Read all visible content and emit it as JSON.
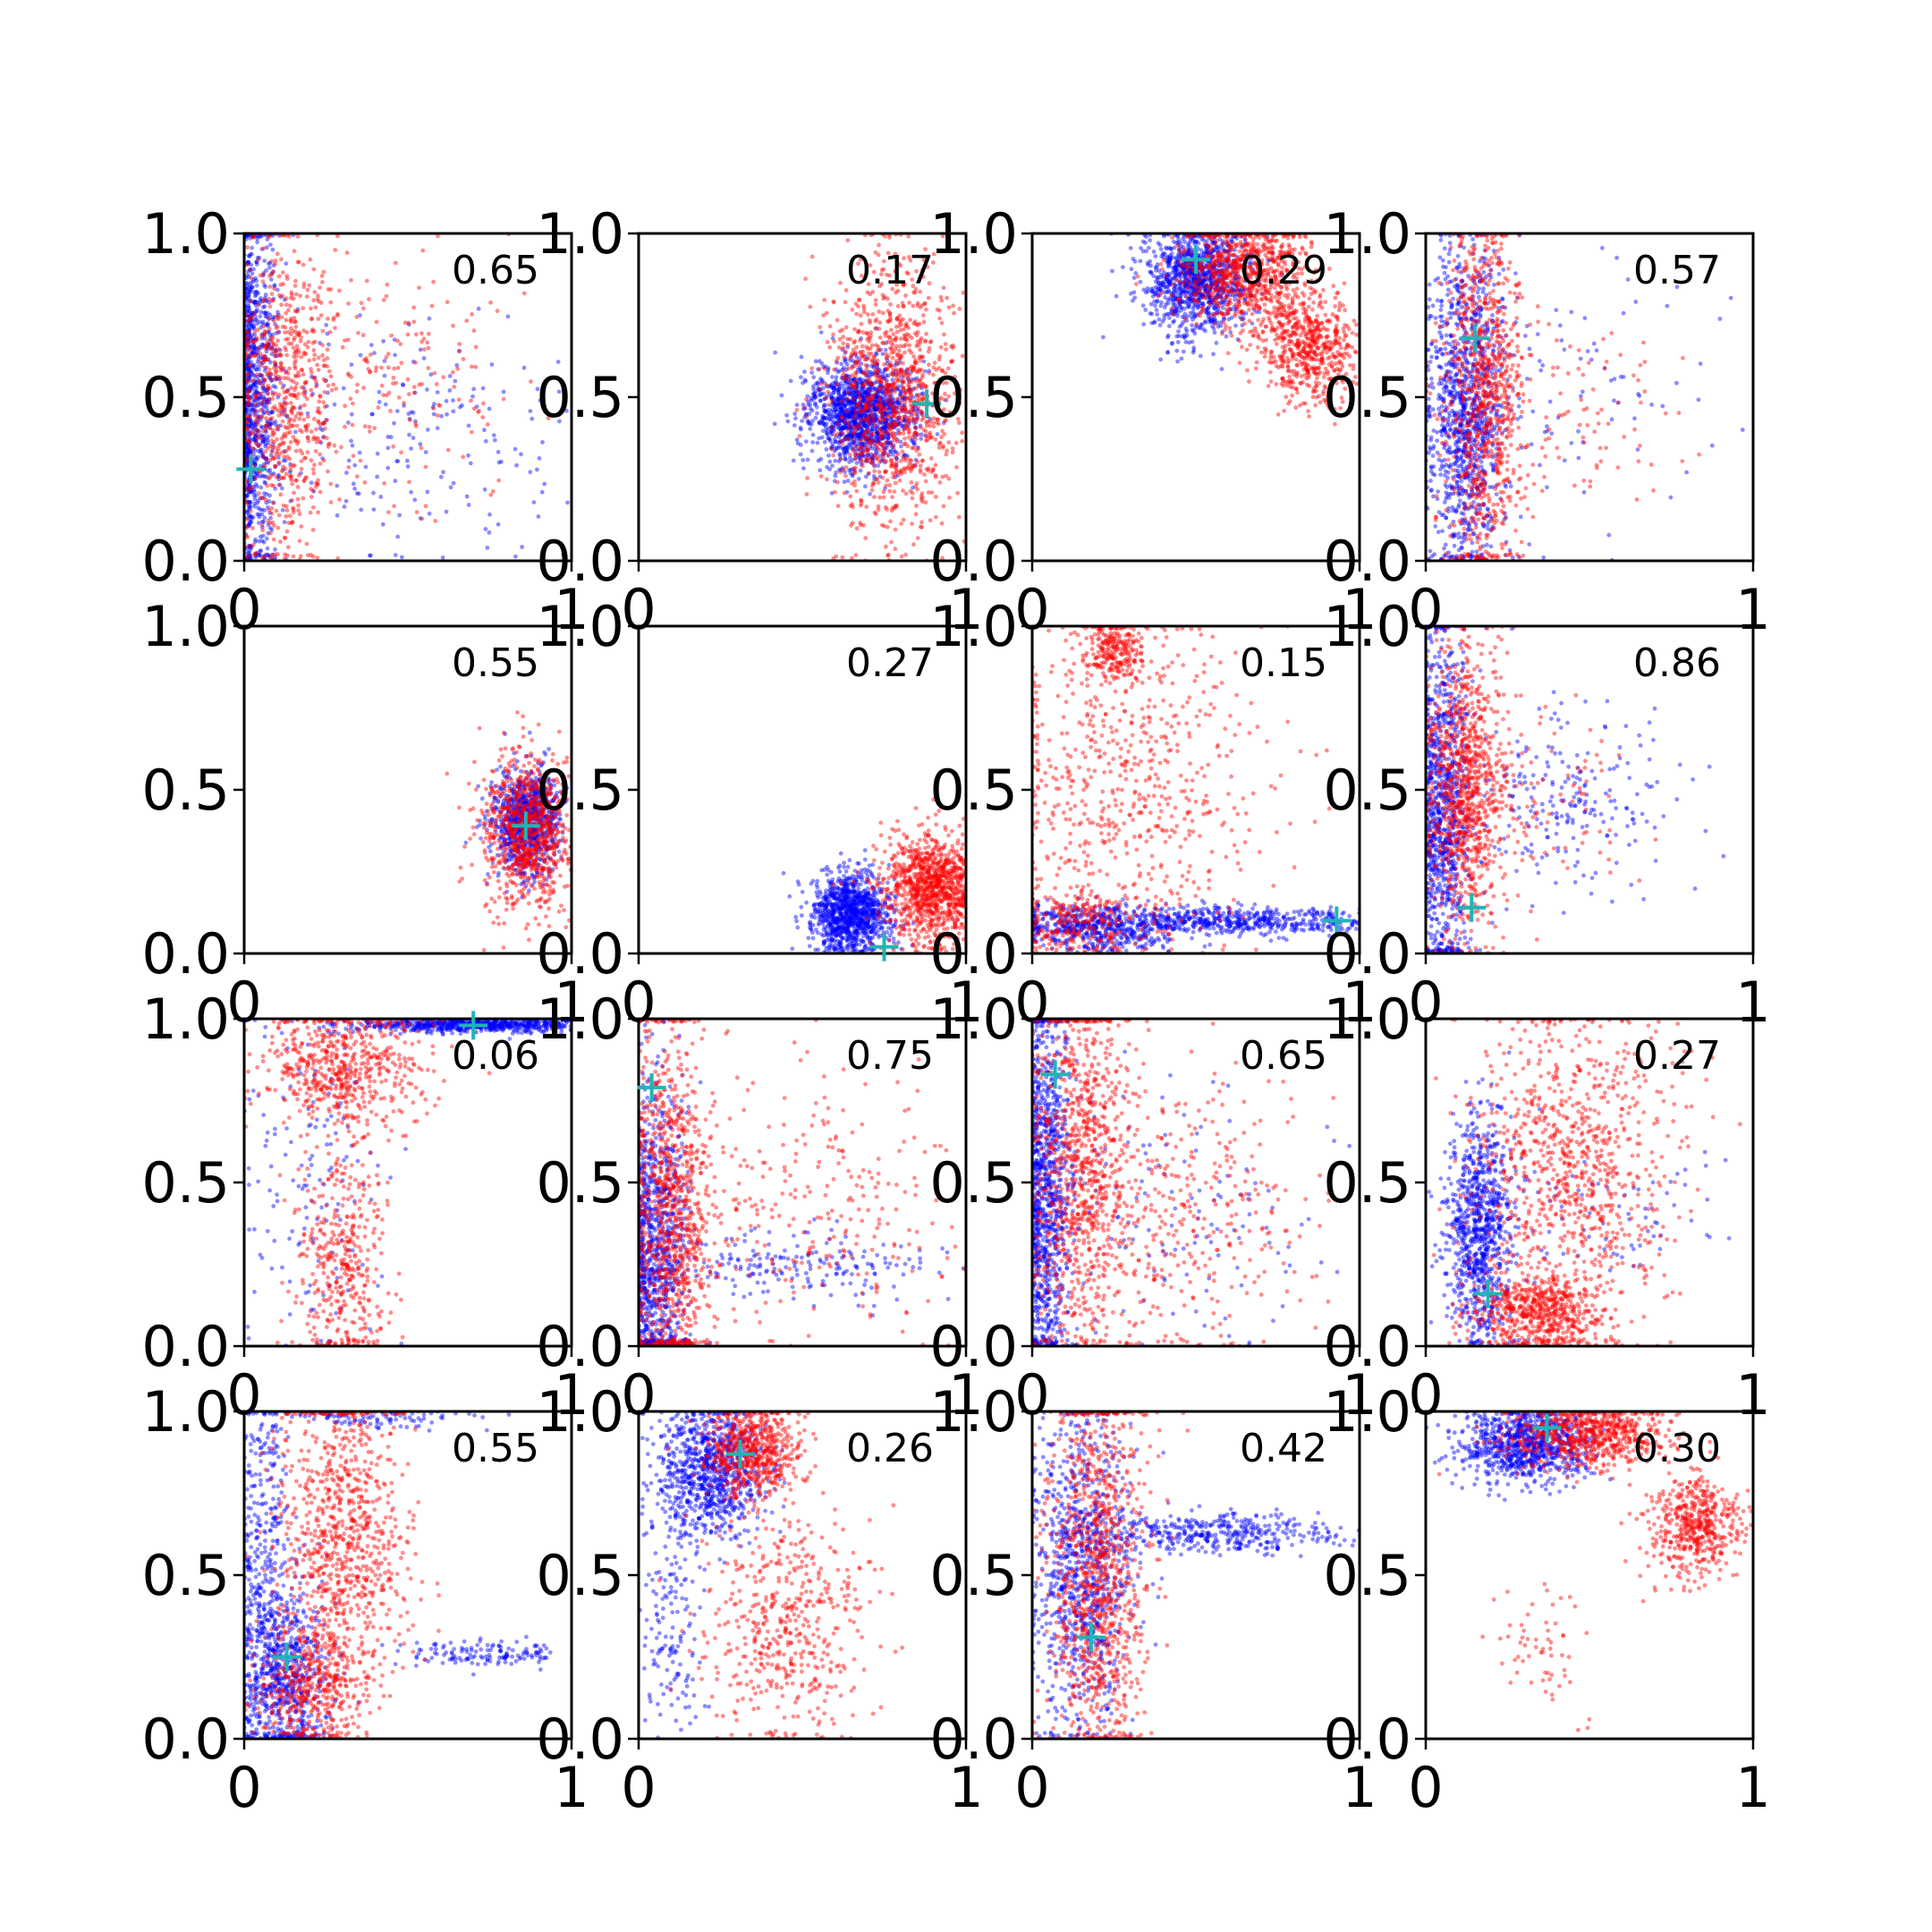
{
  "figure": {
    "layout": "4x4 grid of scatter subplots",
    "series_colors": {
      "blue": "#0000ff",
      "red": "#ff0000",
      "marker": "#1fb5b5"
    }
  },
  "chart_data": [
    {
      "type": "scatter",
      "label": "0.65",
      "xlim": [
        0,
        1
      ],
      "ylim": [
        0,
        1
      ],
      "x_ticks": [
        "0",
        "1"
      ],
      "y_ticks": [
        "0.0",
        "0.5",
        "1.0"
      ],
      "marker": [
        0.02,
        0.28
      ],
      "series": [
        {
          "color": "#0000ff",
          "clusters": [
            [
              0.03,
              0.5,
              0.04,
              0.28,
              900
            ],
            [
              0.5,
              0.4,
              0.3,
              0.2,
              220
            ]
          ]
        },
        {
          "color": "#ff0000",
          "clusters": [
            [
              0.12,
              0.5,
              0.08,
              0.25,
              700
            ],
            [
              0.45,
              0.55,
              0.2,
              0.2,
              180
            ]
          ]
        }
      ]
    },
    {
      "type": "scatter",
      "label": "0.17",
      "xlim": [
        0,
        1
      ],
      "ylim": [
        0,
        1
      ],
      "x_ticks": [
        "0",
        "1"
      ],
      "y_ticks": [
        "0.0",
        "0.5",
        "1.0"
      ],
      "marker": [
        0.88,
        0.48
      ],
      "series": [
        {
          "color": "#0000ff",
          "clusters": [
            [
              0.68,
              0.45,
              0.08,
              0.08,
              1400
            ]
          ]
        },
        {
          "color": "#ff0000",
          "clusters": [
            [
              0.78,
              0.5,
              0.1,
              0.2,
              1100
            ]
          ]
        }
      ]
    },
    {
      "type": "scatter",
      "label": "0.29",
      "xlim": [
        0,
        1
      ],
      "ylim": [
        0,
        1
      ],
      "x_ticks": [
        "0",
        "1"
      ],
      "y_ticks": [
        "0.0",
        "0.5",
        "1.0"
      ],
      "marker": [
        0.5,
        0.92
      ],
      "series": [
        {
          "color": "#0000ff",
          "clusters": [
            [
              0.5,
              0.86,
              0.08,
              0.08,
              1100
            ]
          ]
        },
        {
          "color": "#ff0000",
          "clusters": [
            [
              0.65,
              0.88,
              0.1,
              0.08,
              800
            ],
            [
              0.85,
              0.65,
              0.08,
              0.08,
              600
            ]
          ]
        }
      ]
    },
    {
      "type": "scatter",
      "label": "0.57",
      "xlim": [
        0,
        1
      ],
      "ylim": [
        0,
        1
      ],
      "x_ticks": [
        "0",
        "1"
      ],
      "y_ticks": [
        "0.0",
        "0.5",
        "1.0"
      ],
      "marker": [
        0.15,
        0.68
      ],
      "series": [
        {
          "color": "#0000ff",
          "clusters": [
            [
              0.12,
              0.45,
              0.06,
              0.25,
              1100
            ],
            [
              0.5,
              0.5,
              0.2,
              0.2,
              80
            ]
          ]
        },
        {
          "color": "#ff0000",
          "clusters": [
            [
              0.18,
              0.5,
              0.06,
              0.28,
              900
            ],
            [
              0.5,
              0.45,
              0.15,
              0.15,
              80
            ]
          ]
        }
      ]
    },
    {
      "type": "scatter",
      "label": "0.55",
      "xlim": [
        0,
        1
      ],
      "ylim": [
        0,
        1
      ],
      "x_ticks": [
        "0",
        "1"
      ],
      "y_ticks": [
        "0.0",
        "0.5",
        "1.0"
      ],
      "marker": [
        0.86,
        0.39
      ],
      "series": [
        {
          "color": "#0000ff",
          "clusters": [
            [
              0.86,
              0.4,
              0.05,
              0.08,
              900
            ]
          ]
        },
        {
          "color": "#ff0000",
          "clusters": [
            [
              0.86,
              0.37,
              0.07,
              0.12,
              900
            ]
          ]
        }
      ]
    },
    {
      "type": "scatter",
      "label": "0.27",
      "xlim": [
        0,
        1
      ],
      "ylim": [
        0,
        1
      ],
      "x_ticks": [
        "0",
        "1"
      ],
      "y_ticks": [
        "0.0",
        "0.5",
        "1.0"
      ],
      "marker": [
        0.75,
        0.02
      ],
      "series": [
        {
          "color": "#0000ff",
          "clusters": [
            [
              0.65,
              0.12,
              0.06,
              0.06,
              1100
            ]
          ]
        },
        {
          "color": "#ff0000",
          "clusters": [
            [
              0.9,
              0.2,
              0.08,
              0.08,
              1100
            ]
          ]
        }
      ]
    },
    {
      "type": "scatter",
      "label": "0.15",
      "xlim": [
        0,
        1
      ],
      "ylim": [
        0,
        1
      ],
      "x_ticks": [
        "0",
        "1"
      ],
      "y_ticks": [
        "0.0",
        "0.5",
        "1.0"
      ],
      "marker": [
        0.93,
        0.1
      ],
      "series": [
        {
          "color": "#0000ff",
          "clusters": [
            [
              0.2,
              0.08,
              0.12,
              0.04,
              500
            ],
            [
              0.6,
              0.1,
              0.25,
              0.02,
              600
            ]
          ]
        },
        {
          "color": "#ff0000",
          "clusters": [
            [
              0.25,
              0.92,
              0.05,
              0.05,
              250
            ],
            [
              0.3,
              0.5,
              0.2,
              0.25,
              600
            ],
            [
              0.15,
              0.1,
              0.1,
              0.05,
              250
            ]
          ]
        }
      ]
    },
    {
      "type": "scatter",
      "label": "0.86",
      "xlim": [
        0,
        1
      ],
      "ylim": [
        0,
        1
      ],
      "x_ticks": [
        "0",
        "1"
      ],
      "y_ticks": [
        "0.0",
        "0.5",
        "1.0"
      ],
      "marker": [
        0.14,
        0.14
      ],
      "series": [
        {
          "color": "#0000ff",
          "clusters": [
            [
              0.05,
              0.45,
              0.04,
              0.28,
              900
            ],
            [
              0.4,
              0.45,
              0.2,
              0.15,
              250
            ]
          ]
        },
        {
          "color": "#ff0000",
          "clusters": [
            [
              0.12,
              0.5,
              0.06,
              0.22,
              900
            ],
            [
              0.35,
              0.45,
              0.15,
              0.15,
              120
            ]
          ]
        }
      ]
    },
    {
      "type": "scatter",
      "label": "0.06",
      "xlim": [
        0,
        1
      ],
      "ylim": [
        0,
        1
      ],
      "x_ticks": [
        "0",
        "1"
      ],
      "y_ticks": [
        "0.0",
        "0.5",
        "1.0"
      ],
      "marker": [
        0.7,
        0.98
      ],
      "series": [
        {
          "color": "#0000ff",
          "clusters": [
            [
              0.7,
              0.98,
              0.18,
              0.01,
              700
            ],
            [
              0.2,
              0.5,
              0.12,
              0.3,
              150
            ]
          ]
        },
        {
          "color": "#ff0000",
          "clusters": [
            [
              0.3,
              0.85,
              0.12,
              0.1,
              600
            ],
            [
              0.3,
              0.25,
              0.07,
              0.18,
              400
            ]
          ]
        }
      ]
    },
    {
      "type": "scatter",
      "label": "0.75",
      "xlim": [
        0,
        1
      ],
      "ylim": [
        0,
        1
      ],
      "x_ticks": [
        "0",
        "1"
      ],
      "y_ticks": [
        "0.0",
        "0.5",
        "1.0"
      ],
      "marker": [
        0.04,
        0.79
      ],
      "series": [
        {
          "color": "#0000ff",
          "clusters": [
            [
              0.05,
              0.3,
              0.05,
              0.25,
              900
            ],
            [
              0.5,
              0.25,
              0.25,
              0.05,
              200
            ]
          ]
        },
        {
          "color": "#ff0000",
          "clusters": [
            [
              0.1,
              0.4,
              0.06,
              0.3,
              900
            ],
            [
              0.5,
              0.45,
              0.25,
              0.2,
              300
            ]
          ]
        }
      ]
    },
    {
      "type": "scatter",
      "label": "0.65",
      "xlim": [
        0,
        1
      ],
      "ylim": [
        0,
        1
      ],
      "x_ticks": [
        "0",
        "1"
      ],
      "y_ticks": [
        "0.0",
        "0.5",
        "1.0"
      ],
      "marker": [
        0.07,
        0.83
      ],
      "series": [
        {
          "color": "#0000ff",
          "clusters": [
            [
              0.04,
              0.5,
              0.04,
              0.3,
              1000
            ],
            [
              0.4,
              0.4,
              0.25,
              0.2,
              150
            ]
          ]
        },
        {
          "color": "#ff0000",
          "clusters": [
            [
              0.15,
              0.55,
              0.08,
              0.3,
              900
            ],
            [
              0.45,
              0.4,
              0.2,
              0.2,
              350
            ]
          ]
        }
      ]
    },
    {
      "type": "scatter",
      "label": "0.27",
      "xlim": [
        0,
        1
      ],
      "ylim": [
        0,
        1
      ],
      "x_ticks": [
        "0",
        "1"
      ],
      "y_ticks": [
        "0.0",
        "0.5",
        "1.0"
      ],
      "marker": [
        0.19,
        0.16
      ],
      "series": [
        {
          "color": "#0000ff",
          "clusters": [
            [
              0.17,
              0.35,
              0.05,
              0.18,
              900
            ],
            [
              0.6,
              0.4,
              0.2,
              0.1,
              80
            ]
          ]
        },
        {
          "color": "#ff0000",
          "clusters": [
            [
              0.35,
              0.1,
              0.1,
              0.06,
              600
            ],
            [
              0.45,
              0.55,
              0.15,
              0.25,
              900
            ]
          ]
        }
      ]
    },
    {
      "type": "scatter",
      "label": "0.55",
      "xlim": [
        0,
        1
      ],
      "ylim": [
        0,
        1
      ],
      "x_ticks": [
        "0",
        "1"
      ],
      "y_ticks": [
        "0.0",
        "0.5",
        "1.0"
      ],
      "marker": [
        0.13,
        0.25
      ],
      "series": [
        {
          "color": "#0000ff",
          "clusters": [
            [
              0.12,
              0.2,
              0.07,
              0.15,
              700
            ],
            [
              0.06,
              0.6,
              0.04,
              0.25,
              300
            ],
            [
              0.75,
              0.26,
              0.15,
              0.02,
              150
            ],
            [
              0.4,
              0.98,
              0.15,
              0.02,
              100
            ]
          ]
        },
        {
          "color": "#ff0000",
          "clusters": [
            [
              0.3,
              0.6,
              0.1,
              0.25,
              900
            ],
            [
              0.2,
              0.15,
              0.08,
              0.1,
              400
            ]
          ]
        }
      ]
    },
    {
      "type": "scatter",
      "label": "0.26",
      "xlim": [
        0,
        1
      ],
      "ylim": [
        0,
        1
      ],
      "x_ticks": [
        "0",
        "1"
      ],
      "y_ticks": [
        "0.0",
        "0.5",
        "1.0"
      ],
      "marker": [
        0.31,
        0.87
      ],
      "series": [
        {
          "color": "#0000ff",
          "clusters": [
            [
              0.22,
              0.82,
              0.08,
              0.1,
              900
            ],
            [
              0.1,
              0.35,
              0.05,
              0.2,
              150
            ]
          ]
        },
        {
          "color": "#ff0000",
          "clusters": [
            [
              0.35,
              0.88,
              0.07,
              0.07,
              600
            ],
            [
              0.45,
              0.35,
              0.12,
              0.18,
              500
            ]
          ]
        }
      ]
    },
    {
      "type": "scatter",
      "label": "0.42",
      "xlim": [
        0,
        1
      ],
      "ylim": [
        0,
        1
      ],
      "x_ticks": [
        "0",
        "1"
      ],
      "y_ticks": [
        "0.0",
        "0.5",
        "1.0"
      ],
      "marker": [
        0.18,
        0.31
      ],
      "series": [
        {
          "color": "#0000ff",
          "clusters": [
            [
              0.15,
              0.5,
              0.08,
              0.25,
              900
            ],
            [
              0.55,
              0.63,
              0.2,
              0.03,
              400
            ]
          ]
        },
        {
          "color": "#ff0000",
          "clusters": [
            [
              0.2,
              0.5,
              0.07,
              0.3,
              1000
            ]
          ]
        }
      ]
    },
    {
      "type": "scatter",
      "label": "0.30",
      "xlim": [
        0,
        1
      ],
      "ylim": [
        0,
        1
      ],
      "x_ticks": [
        "0",
        "1"
      ],
      "y_ticks": [
        "0.0",
        "0.5",
        "1.0"
      ],
      "marker": [
        0.37,
        0.95
      ],
      "series": [
        {
          "color": "#0000ff",
          "clusters": [
            [
              0.3,
              0.9,
              0.1,
              0.06,
              900
            ]
          ]
        },
        {
          "color": "#ff0000",
          "clusters": [
            [
              0.5,
              0.93,
              0.12,
              0.05,
              700
            ],
            [
              0.82,
              0.65,
              0.07,
              0.08,
              500
            ],
            [
              0.35,
              0.3,
              0.08,
              0.1,
              60
            ]
          ]
        }
      ]
    }
  ]
}
